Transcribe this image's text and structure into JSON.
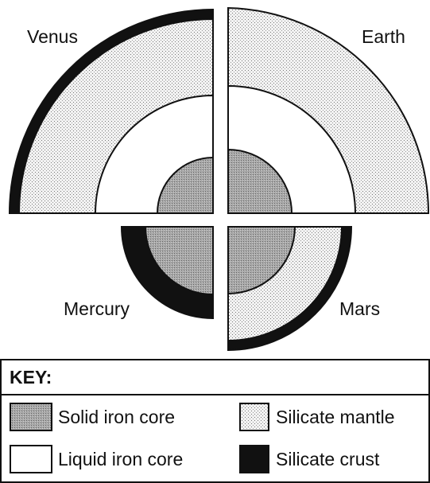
{
  "planets": [
    {
      "label": "Venus"
    },
    {
      "label": "Earth"
    },
    {
      "label": "Mercury"
    },
    {
      "label": "Mars"
    }
  ],
  "key": {
    "title": "KEY:",
    "items": [
      "Solid iron core",
      "Silicate mantle",
      "Liquid iron core",
      "Silicate crust"
    ]
  }
}
